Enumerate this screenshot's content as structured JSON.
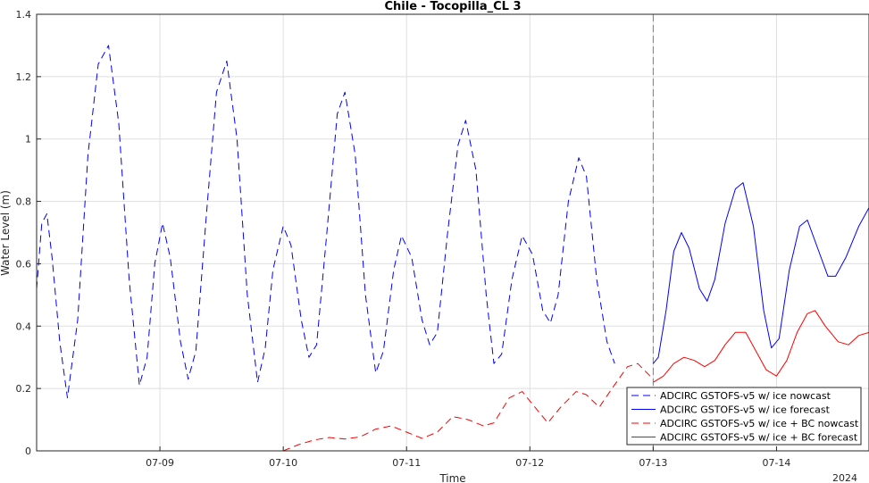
{
  "chart_data": {
    "type": "line",
    "title": "Chile - Tocopilla_CL 3",
    "xlabel": "Time",
    "ylabel": "Water Level (m)",
    "year_label": "2024",
    "xlim": [
      "2024-07-08T00:00",
      "2024-07-14T18:00"
    ],
    "ylim": [
      0,
      1.4
    ],
    "yticks": [
      0,
      0.2,
      0.4,
      0.6,
      0.8,
      1,
      1.2,
      1.4
    ],
    "ytick_labels": [
      "0",
      "0.2",
      "0.4",
      "0.6",
      "0.8",
      "1",
      "1.2",
      "1.4"
    ],
    "xticks": [
      "2024-07-09T00:00",
      "2024-07-10T00:00",
      "2024-07-11T00:00",
      "2024-07-12T00:00",
      "2024-07-13T00:00",
      "2024-07-14T00:00"
    ],
    "xtick_labels": [
      "07-09",
      "07-10",
      "07-11",
      "07-12",
      "07-13",
      "07-14"
    ],
    "grid": true,
    "forecast_start_marker": "2024-07-13T00:00",
    "legend_position": "bottom-right",
    "series": [
      {
        "name": "ADCIRC GSTOFS-v5 w/ ice nowcast",
        "color": "#0000ff",
        "style": "dashed",
        "points": [
          [
            "2024-07-08T00:00",
            0.52
          ],
          [
            "2024-07-08T01:00",
            0.73
          ],
          [
            "2024-07-08T02:00",
            0.76
          ],
          [
            "2024-07-08T03:00",
            0.62
          ],
          [
            "2024-07-08T04:30",
            0.35
          ],
          [
            "2024-07-08T06:00",
            0.17
          ],
          [
            "2024-07-08T08:00",
            0.42
          ],
          [
            "2024-07-08T10:00",
            0.95
          ],
          [
            "2024-07-08T12:00",
            1.24
          ],
          [
            "2024-07-08T14:00",
            1.3
          ],
          [
            "2024-07-08T16:00",
            1.05
          ],
          [
            "2024-07-08T18:00",
            0.55
          ],
          [
            "2024-07-08T20:00",
            0.21
          ],
          [
            "2024-07-08T21:30",
            0.3
          ],
          [
            "2024-07-08T23:00",
            0.6
          ],
          [
            "2024-07-09T00:30",
            0.73
          ],
          [
            "2024-07-09T02:00",
            0.62
          ],
          [
            "2024-07-09T04:00",
            0.35
          ],
          [
            "2024-07-09T05:30",
            0.23
          ],
          [
            "2024-07-09T07:00",
            0.32
          ],
          [
            "2024-07-09T09:00",
            0.75
          ],
          [
            "2024-07-09T11:00",
            1.15
          ],
          [
            "2024-07-09T13:00",
            1.25
          ],
          [
            "2024-07-09T15:00",
            1.0
          ],
          [
            "2024-07-09T17:00",
            0.5
          ],
          [
            "2024-07-09T19:00",
            0.22
          ],
          [
            "2024-07-09T20:30",
            0.33
          ],
          [
            "2024-07-09T22:00",
            0.58
          ],
          [
            "2024-07-10T00:00",
            0.72
          ],
          [
            "2024-07-10T01:30",
            0.66
          ],
          [
            "2024-07-10T03:30",
            0.42
          ],
          [
            "2024-07-10T05:00",
            0.3
          ],
          [
            "2024-07-10T06:30",
            0.34
          ],
          [
            "2024-07-10T08:30",
            0.7
          ],
          [
            "2024-07-10T10:30",
            1.08
          ],
          [
            "2024-07-10T12:00",
            1.15
          ],
          [
            "2024-07-10T14:00",
            0.95
          ],
          [
            "2024-07-10T16:00",
            0.5
          ],
          [
            "2024-07-10T18:00",
            0.25
          ],
          [
            "2024-07-10T19:30",
            0.32
          ],
          [
            "2024-07-10T21:30",
            0.58
          ],
          [
            "2024-07-10T23:00",
            0.69
          ],
          [
            "2024-07-11T01:00",
            0.62
          ],
          [
            "2024-07-11T03:00",
            0.42
          ],
          [
            "2024-07-11T04:30",
            0.34
          ],
          [
            "2024-07-11T06:00",
            0.38
          ],
          [
            "2024-07-11T08:00",
            0.7
          ],
          [
            "2024-07-11T10:00",
            0.98
          ],
          [
            "2024-07-11T11:30",
            1.06
          ],
          [
            "2024-07-11T13:30",
            0.9
          ],
          [
            "2024-07-11T15:30",
            0.5
          ],
          [
            "2024-07-11T17:00",
            0.28
          ],
          [
            "2024-07-11T18:30",
            0.31
          ],
          [
            "2024-07-11T20:30",
            0.55
          ],
          [
            "2024-07-11T22:30",
            0.69
          ],
          [
            "2024-07-12T00:30",
            0.63
          ],
          [
            "2024-07-12T02:30",
            0.45
          ],
          [
            "2024-07-12T04:00",
            0.41
          ],
          [
            "2024-07-12T05:30",
            0.5
          ],
          [
            "2024-07-12T07:30",
            0.8
          ],
          [
            "2024-07-12T09:30",
            0.94
          ],
          [
            "2024-07-12T11:00",
            0.88
          ],
          [
            "2024-07-12T13:00",
            0.55
          ],
          [
            "2024-07-12T15:00",
            0.35
          ],
          [
            "2024-07-12T16:30",
            0.28
          ]
        ]
      },
      {
        "name": "ADCIRC GSTOFS-v5 w/ ice forecast",
        "color": "#0000ff",
        "style": "solid",
        "points": [
          [
            "2024-07-13T00:00",
            0.28
          ],
          [
            "2024-07-13T01:00",
            0.3
          ],
          [
            "2024-07-13T02:30",
            0.45
          ],
          [
            "2024-07-13T04:00",
            0.64
          ],
          [
            "2024-07-13T05:30",
            0.7
          ],
          [
            "2024-07-13T07:00",
            0.65
          ],
          [
            "2024-07-13T09:00",
            0.52
          ],
          [
            "2024-07-13T10:30",
            0.48
          ],
          [
            "2024-07-13T12:00",
            0.55
          ],
          [
            "2024-07-13T14:00",
            0.73
          ],
          [
            "2024-07-13T16:00",
            0.84
          ],
          [
            "2024-07-13T17:30",
            0.86
          ],
          [
            "2024-07-13T19:30",
            0.72
          ],
          [
            "2024-07-13T21:30",
            0.45
          ],
          [
            "2024-07-13T23:00",
            0.33
          ],
          [
            "2024-07-14T00:30",
            0.36
          ],
          [
            "2024-07-14T02:30",
            0.58
          ],
          [
            "2024-07-14T04:30",
            0.72
          ],
          [
            "2024-07-14T06:00",
            0.74
          ],
          [
            "2024-07-14T08:00",
            0.65
          ],
          [
            "2024-07-14T10:00",
            0.56
          ],
          [
            "2024-07-14T11:30",
            0.56
          ],
          [
            "2024-07-14T13:30",
            0.62
          ],
          [
            "2024-07-14T16:00",
            0.72
          ],
          [
            "2024-07-14T18:00",
            0.78
          ]
        ]
      },
      {
        "name": "ADCIRC GSTOFS-v5 w/ ice + BC nowcast",
        "color": "#ff0000",
        "style": "dashed",
        "points": [
          [
            "2024-07-10T00:00",
            0.0
          ],
          [
            "2024-07-10T03:00",
            0.02
          ],
          [
            "2024-07-10T06:00",
            0.035
          ],
          [
            "2024-07-10T09:00",
            0.043
          ],
          [
            "2024-07-10T12:00",
            0.038
          ],
          [
            "2024-07-10T15:00",
            0.045
          ],
          [
            "2024-07-10T18:00",
            0.07
          ],
          [
            "2024-07-10T21:00",
            0.08
          ],
          [
            "2024-07-11T00:00",
            0.06
          ],
          [
            "2024-07-11T03:00",
            0.04
          ],
          [
            "2024-07-11T06:00",
            0.06
          ],
          [
            "2024-07-11T09:00",
            0.11
          ],
          [
            "2024-07-11T12:00",
            0.1
          ],
          [
            "2024-07-11T15:00",
            0.08
          ],
          [
            "2024-07-11T17:00",
            0.09
          ],
          [
            "2024-07-11T20:00",
            0.17
          ],
          [
            "2024-07-11T22:30",
            0.19
          ],
          [
            "2024-07-12T01:00",
            0.14
          ],
          [
            "2024-07-12T03:30",
            0.09
          ],
          [
            "2024-07-12T06:00",
            0.14
          ],
          [
            "2024-07-12T09:00",
            0.19
          ],
          [
            "2024-07-12T11:00",
            0.18
          ],
          [
            "2024-07-12T13:30",
            0.14
          ],
          [
            "2024-07-12T16:00",
            0.2
          ],
          [
            "2024-07-12T19:00",
            0.27
          ],
          [
            "2024-07-12T21:00",
            0.28
          ],
          [
            "2024-07-12T24:00",
            0.23
          ]
        ]
      },
      {
        "name": "ADCIRC GSTOFS-v5 w/ ice + BC forecast",
        "color": "#ff0000",
        "style": "solid",
        "points": [
          [
            "2024-07-13T00:00",
            0.22
          ],
          [
            "2024-07-13T02:00",
            0.24
          ],
          [
            "2024-07-13T04:00",
            0.28
          ],
          [
            "2024-07-13T06:00",
            0.3
          ],
          [
            "2024-07-13T08:00",
            0.29
          ],
          [
            "2024-07-13T10:00",
            0.27
          ],
          [
            "2024-07-13T12:00",
            0.29
          ],
          [
            "2024-07-13T14:00",
            0.34
          ],
          [
            "2024-07-13T16:00",
            0.38
          ],
          [
            "2024-07-13T18:00",
            0.38
          ],
          [
            "2024-07-13T20:00",
            0.32
          ],
          [
            "2024-07-13T22:00",
            0.26
          ],
          [
            "2024-07-14T00:00",
            0.24
          ],
          [
            "2024-07-14T02:00",
            0.29
          ],
          [
            "2024-07-14T04:00",
            0.38
          ],
          [
            "2024-07-14T06:00",
            0.44
          ],
          [
            "2024-07-14T07:30",
            0.45
          ],
          [
            "2024-07-14T09:30",
            0.4
          ],
          [
            "2024-07-14T12:00",
            0.35
          ],
          [
            "2024-07-14T14:00",
            0.34
          ],
          [
            "2024-07-14T16:00",
            0.37
          ],
          [
            "2024-07-14T18:00",
            0.38
          ]
        ]
      }
    ]
  }
}
